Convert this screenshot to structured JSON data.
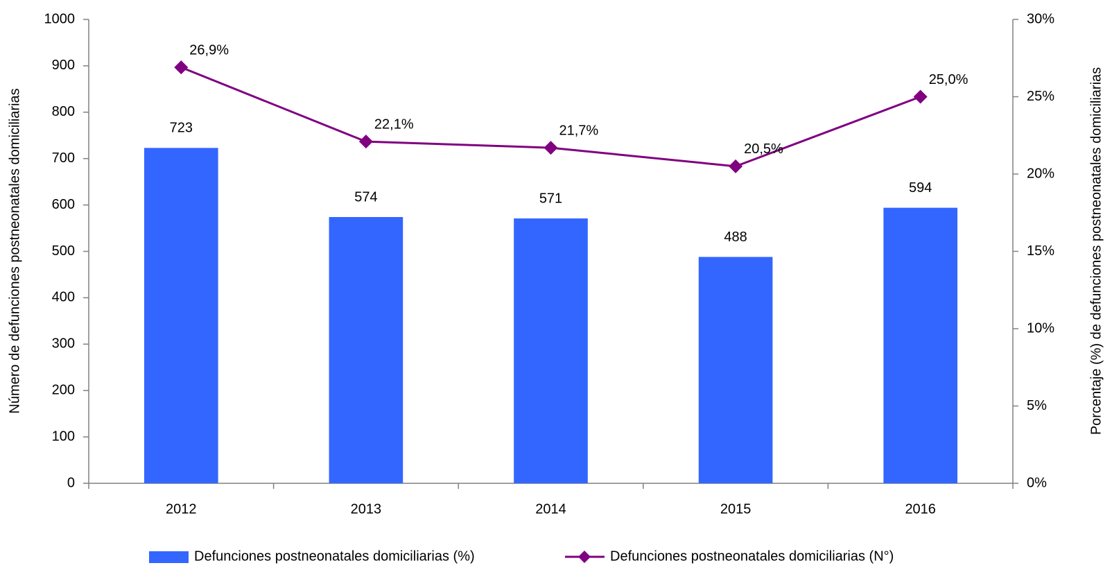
{
  "chart_data": {
    "type": "bar_line",
    "y_label": "Número de defunciones postneonatales domiciliarias",
    "y2_label": "Porcentaje (%) de defunciones postneonatales domiciliarias",
    "categories": [
      "2012",
      "2013",
      "2014",
      "2015",
      "2016"
    ],
    "series": [
      {
        "name": "Defunciones postneonatales domiciliarias (%)",
        "type": "bar",
        "color": "#3366ff",
        "values": [
          723,
          574,
          571,
          488,
          594
        ]
      },
      {
        "name": "Defunciones postneonatales domiciliarias (N°)",
        "type": "line",
        "axis": "y2",
        "color": "#800080",
        "values": [
          26.9,
          22.1,
          21.7,
          20.5,
          25.0
        ],
        "value_labels": [
          "26,9%",
          "22,1%",
          "21,7%",
          "20,5%",
          "25,0%"
        ]
      }
    ],
    "ylim": [
      0,
      1000
    ],
    "yticks": [
      0,
      100,
      200,
      300,
      400,
      500,
      600,
      700,
      800,
      900,
      1000
    ],
    "y2lim": [
      0,
      30
    ],
    "y2ticks": [
      {
        "value": 0,
        "label": "0%"
      },
      {
        "value": 5,
        "label": "5%"
      },
      {
        "value": 10,
        "label": "10%"
      },
      {
        "value": 15,
        "label": "15%"
      },
      {
        "value": 20,
        "label": "20%"
      },
      {
        "value": 25,
        "label": "25%"
      },
      {
        "value": 30,
        "label": "30%"
      }
    ],
    "grid": false
  }
}
